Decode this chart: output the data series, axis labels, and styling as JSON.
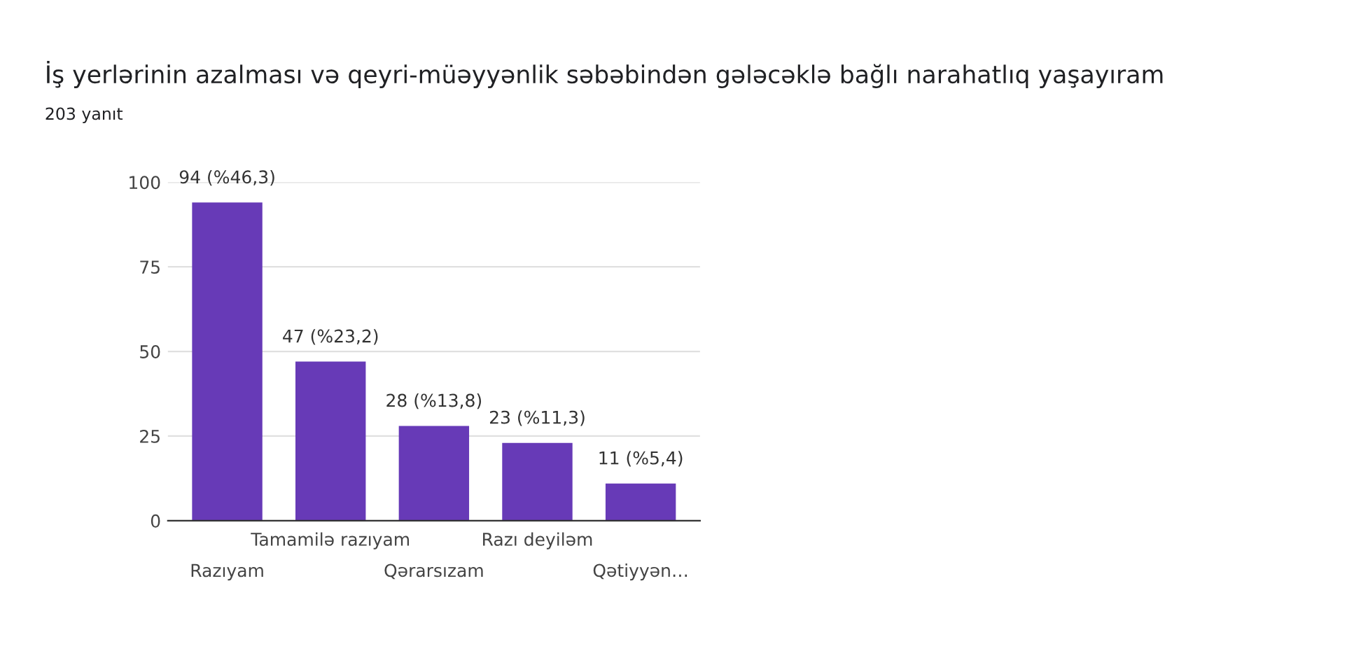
{
  "chart_data": {
    "type": "bar",
    "title": "İş yerlərinin azalması və qeyri-müəyyənlik səbəbindən gələcəklə bağlı narahatlıq yaşayıram",
    "subtitle": "203 yanıt",
    "categories": [
      "Razıyam",
      "Tamamilə razıyam",
      "Qərarsızam",
      "Razı deyiləm",
      "Qətiyyən…"
    ],
    "values": [
      94,
      47,
      28,
      23,
      11
    ],
    "value_labels": [
      "94 (%46,3)",
      "47 (%23,2)",
      "28 (%13,8)",
      "23 (%11,3)",
      "11 (%5,4)"
    ],
    "color": "#673ab7",
    "ylim": [
      0,
      100
    ],
    "yticks": [
      0,
      25,
      50,
      75,
      100
    ],
    "grid": "y",
    "legend": false
  }
}
